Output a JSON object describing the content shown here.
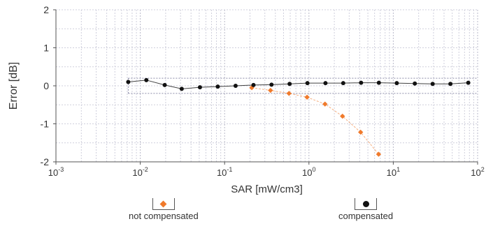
{
  "chart_data": {
    "type": "scatter",
    "xlabel": "SAR [mW/cm3]",
    "ylabel": "Error [dB]",
    "xscale": "log",
    "xlim": [
      0.001,
      100
    ],
    "ylim": [
      -2,
      2
    ],
    "xticks": [
      {
        "value": 0.001,
        "base": "10",
        "exp": "-3"
      },
      {
        "value": 0.01,
        "base": "10",
        "exp": "-2"
      },
      {
        "value": 0.1,
        "base": "10",
        "exp": "-1"
      },
      {
        "value": 1,
        "base": "10",
        "exp": "0"
      },
      {
        "value": 10,
        "base": "10",
        "exp": "1"
      },
      {
        "value": 100,
        "base": "10",
        "exp": "2"
      }
    ],
    "yticks": [
      "2",
      "1",
      "0",
      "-1",
      "-2"
    ],
    "ytick_values": [
      2,
      1,
      0,
      -1,
      -2
    ],
    "grid": true,
    "band": [
      -0.2,
      0.2
    ],
    "series": [
      {
        "name": "not compensated",
        "color": "#f07a2b",
        "marker": "diamond",
        "x": [
          0.21,
          0.35,
          0.58,
          0.95,
          1.55,
          2.5,
          4.1,
          6.7
        ],
        "y": [
          -0.05,
          -0.12,
          -0.2,
          -0.3,
          -0.48,
          -0.8,
          -1.22,
          -1.8
        ]
      },
      {
        "name": "compensated",
        "color": "#111111",
        "marker": "circle",
        "x": [
          0.0072,
          0.0118,
          0.0195,
          0.031,
          0.051,
          0.083,
          0.135,
          0.22,
          0.36,
          0.59,
          0.96,
          1.57,
          2.55,
          4.15,
          6.75,
          11,
          18,
          29.3,
          47.6,
          77.5
        ],
        "y": [
          0.1,
          0.15,
          0.02,
          -0.08,
          -0.04,
          -0.02,
          0.0,
          0.02,
          0.03,
          0.05,
          0.07,
          0.07,
          0.07,
          0.08,
          0.08,
          0.07,
          0.06,
          0.05,
          0.05,
          0.08
        ]
      }
    ]
  },
  "legend": {
    "not_compensated": "not compensated",
    "compensated": "compensated"
  }
}
